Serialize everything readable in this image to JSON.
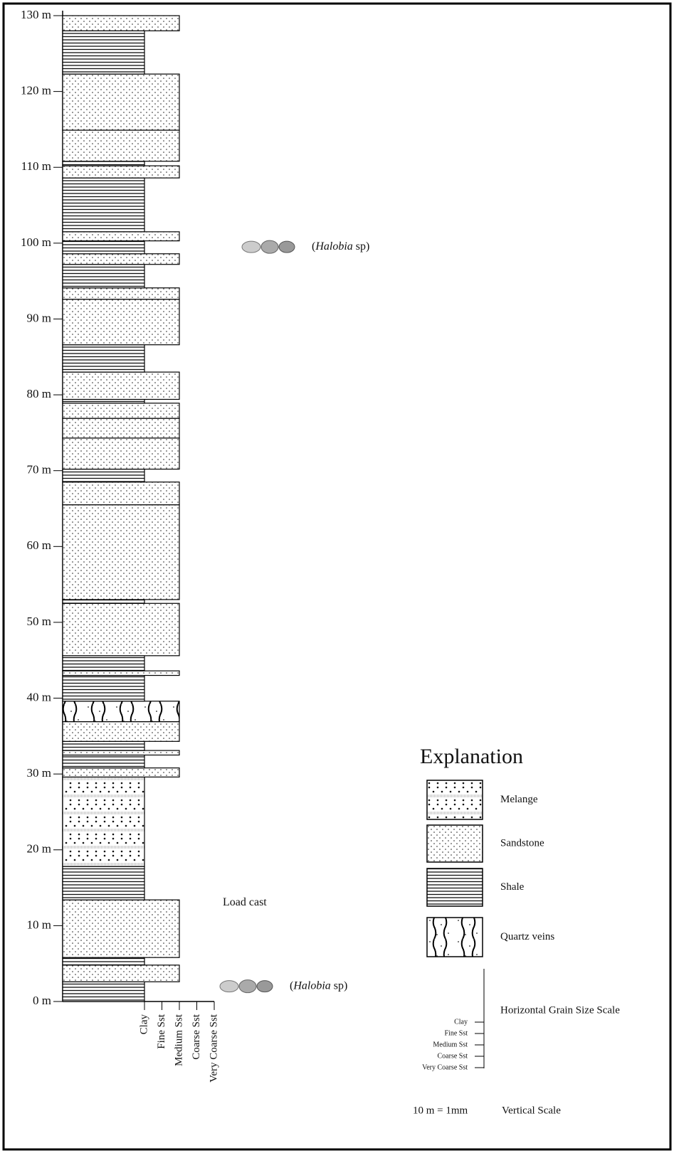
{
  "depth_axis": {
    "ylim": [
      0,
      130
    ],
    "ticks": [
      {
        "value": 0,
        "label": "0 m"
      },
      {
        "value": 10,
        "label": "10 m"
      },
      {
        "value": 20,
        "label": "20 m"
      },
      {
        "value": 30,
        "label": "30 m"
      },
      {
        "value": 40,
        "label": "40 m"
      },
      {
        "value": 50,
        "label": "50 m"
      },
      {
        "value": 60,
        "label": "60 m"
      },
      {
        "value": 70,
        "label": "70 m"
      },
      {
        "value": 80,
        "label": "80 m"
      },
      {
        "value": 90,
        "label": "90 m"
      },
      {
        "value": 100,
        "label": "100 m"
      },
      {
        "value": 110,
        "label": "110 m"
      },
      {
        "value": 120,
        "label": "120 m"
      },
      {
        "value": 130,
        "label": "130 m"
      }
    ]
  },
  "grain_sizes": [
    "Clay",
    "Fine Sst",
    "Medium Sst",
    "Coarse Sst",
    "Very Coarse Sst"
  ],
  "layers": [
    {
      "lithology": "Shale",
      "grain": "Clay",
      "base": 0,
      "top": 2.6
    },
    {
      "lithology": "Sandstone",
      "grain": "Medium Sst",
      "base": 2.6,
      "top": 4.8
    },
    {
      "lithology": "Shale",
      "grain": "Clay",
      "base": 4.8,
      "top": 5.8
    },
    {
      "lithology": "Sandstone",
      "grain": "Medium Sst",
      "base": 5.8,
      "top": 13.4
    },
    {
      "lithology": "Shale",
      "grain": "Clay",
      "base": 13.4,
      "top": 17.8
    },
    {
      "lithology": "Melange",
      "grain": "Clay",
      "base": 17.8,
      "top": 29.6
    },
    {
      "lithology": "Sandstone",
      "grain": "Medium Sst",
      "base": 29.6,
      "top": 30.8
    },
    {
      "lithology": "Shale",
      "grain": "Clay",
      "base": 30.8,
      "top": 32.5
    },
    {
      "lithology": "Sandstone",
      "grain": "Medium Sst",
      "base": 32.5,
      "top": 33.1
    },
    {
      "lithology": "Shale",
      "grain": "Clay",
      "base": 33.1,
      "top": 34.3
    },
    {
      "lithology": "Sandstone",
      "grain": "Medium Sst",
      "base": 34.3,
      "top": 36.9
    },
    {
      "lithology": "Quartz veins",
      "grain": "Medium Sst",
      "base": 36.9,
      "top": 39.6
    },
    {
      "lithology": "Shale",
      "grain": "Clay",
      "base": 39.6,
      "top": 43
    },
    {
      "lithology": "Sandstone",
      "grain": "Medium Sst",
      "base": 43,
      "top": 43.6
    },
    {
      "lithology": "Shale",
      "grain": "Clay",
      "base": 43.6,
      "top": 45.6
    },
    {
      "lithology": "Sandstone",
      "grain": "Medium Sst",
      "base": 45.6,
      "top": 52.5
    },
    {
      "lithology": "Shale",
      "grain": "Clay",
      "base": 52.5,
      "top": 53
    },
    {
      "lithology": "Sandstone",
      "grain": "Medium Sst",
      "base": 53,
      "top": 65.5
    },
    {
      "lithology": "Sandstone",
      "grain": "Medium Sst",
      "base": 65.5,
      "top": 68.5
    },
    {
      "lithology": "Shale",
      "grain": "Clay",
      "base": 68.5,
      "top": 70.2
    },
    {
      "lithology": "Sandstone",
      "grain": "Medium Sst",
      "base": 70.2,
      "top": 74.3
    },
    {
      "lithology": "Sandstone",
      "grain": "Medium Sst",
      "base": 74.3,
      "top": 76.9
    },
    {
      "lithology": "Sandstone",
      "grain": "Medium Sst",
      "base": 76.9,
      "top": 78.9
    },
    {
      "lithology": "Shale",
      "grain": "Clay",
      "base": 78.9,
      "top": 79.4
    },
    {
      "lithology": "Sandstone",
      "grain": "Medium Sst",
      "base": 79.4,
      "top": 83
    },
    {
      "lithology": "Shale",
      "grain": "Clay",
      "base": 83,
      "top": 86.6
    },
    {
      "lithology": "Sandstone",
      "grain": "Medium Sst",
      "base": 86.6,
      "top": 92.6
    },
    {
      "lithology": "Sandstone",
      "grain": "Medium Sst",
      "base": 92.6,
      "top": 94.1
    },
    {
      "lithology": "Shale",
      "grain": "Clay",
      "base": 94.1,
      "top": 97.2
    },
    {
      "lithology": "Sandstone",
      "grain": "Medium Sst",
      "base": 97.2,
      "top": 98.6
    },
    {
      "lithology": "Shale",
      "grain": "Clay",
      "base": 98.6,
      "top": 100.3
    },
    {
      "lithology": "Sandstone",
      "grain": "Medium Sst",
      "base": 100.3,
      "top": 101.5
    },
    {
      "lithology": "Shale",
      "grain": "Clay",
      "base": 101.5,
      "top": 108.6
    },
    {
      "lithology": "Sandstone",
      "grain": "Medium Sst",
      "base": 108.6,
      "top": 110.2
    },
    {
      "lithology": "Shale",
      "grain": "Clay",
      "base": 110.2,
      "top": 110.8
    },
    {
      "lithology": "Sandstone",
      "grain": "Medium Sst",
      "base": 110.8,
      "top": 114.9
    },
    {
      "lithology": "Sandstone",
      "grain": "Medium Sst",
      "base": 114.9,
      "top": 122.3
    },
    {
      "lithology": "Shale",
      "grain": "Clay",
      "base": 122.3,
      "top": 128
    },
    {
      "lithology": "Sandstone",
      "grain": "Medium Sst",
      "base": 128,
      "top": 130
    }
  ],
  "fossils": [
    {
      "depth": 99.5,
      "text": [
        "(",
        "Halobia",
        " sp)"
      ]
    },
    {
      "depth": 2,
      "text": [
        "(",
        "Halobia",
        " sp)"
      ]
    }
  ],
  "annotation": {
    "depth": 13,
    "text": "Load cast"
  },
  "legend": {
    "title": "Explanation",
    "items": [
      "Melange",
      "Sandstone",
      "Shale",
      "Quartz veins"
    ]
  },
  "grain_scale": {
    "title": "Horizontal Grain Size Scale",
    "labels": [
      "Clay",
      "Fine Sst",
      "Medium Sst",
      "Coarse Sst",
      "Very Coarse Sst"
    ]
  },
  "vertical_scale": {
    "ratio": "10 m = 1mm",
    "title": "Vertical Scale"
  }
}
